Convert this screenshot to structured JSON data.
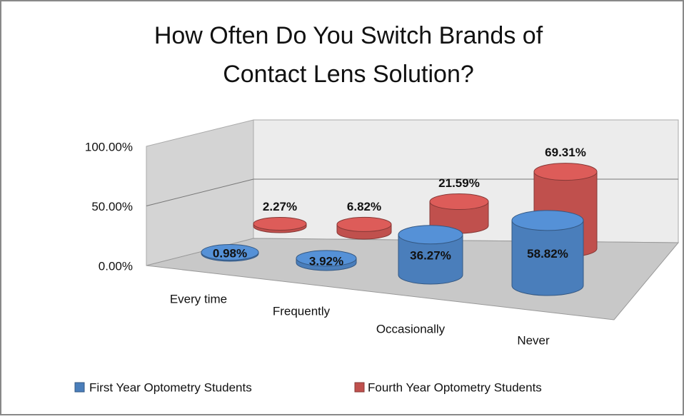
{
  "chart_data": {
    "type": "bar3d",
    "title": "How Often Do You Switch Brands of Contact Lens Solution?",
    "title_lines": [
      "How Often Do You Switch Brands of",
      "Contact Lens Solution?"
    ],
    "categories": [
      "Every time",
      "Frequently",
      "Occasionally",
      "Never"
    ],
    "series": [
      {
        "name": "First Year Optometry Students",
        "color": "#4a7ebb",
        "values": [
          0.98,
          3.92,
          36.27,
          58.82
        ],
        "value_labels": [
          "0.98%",
          "3.92%",
          "36.27%",
          "58.82%"
        ]
      },
      {
        "name": "Fourth Year Optometry Students",
        "color": "#c0504d",
        "values": [
          2.27,
          6.82,
          21.59,
          69.31
        ],
        "value_labels": [
          "2.27%",
          "6.82%",
          "21.59%",
          "69.31%"
        ]
      }
    ],
    "ylim": [
      0,
      100
    ],
    "yticks": [
      {
        "value": 0,
        "label": "0.00%"
      },
      {
        "value": 50,
        "label": "50.00%"
      },
      {
        "value": 100,
        "label": "100.00%"
      }
    ],
    "grid": true,
    "legend": "bottom"
  }
}
